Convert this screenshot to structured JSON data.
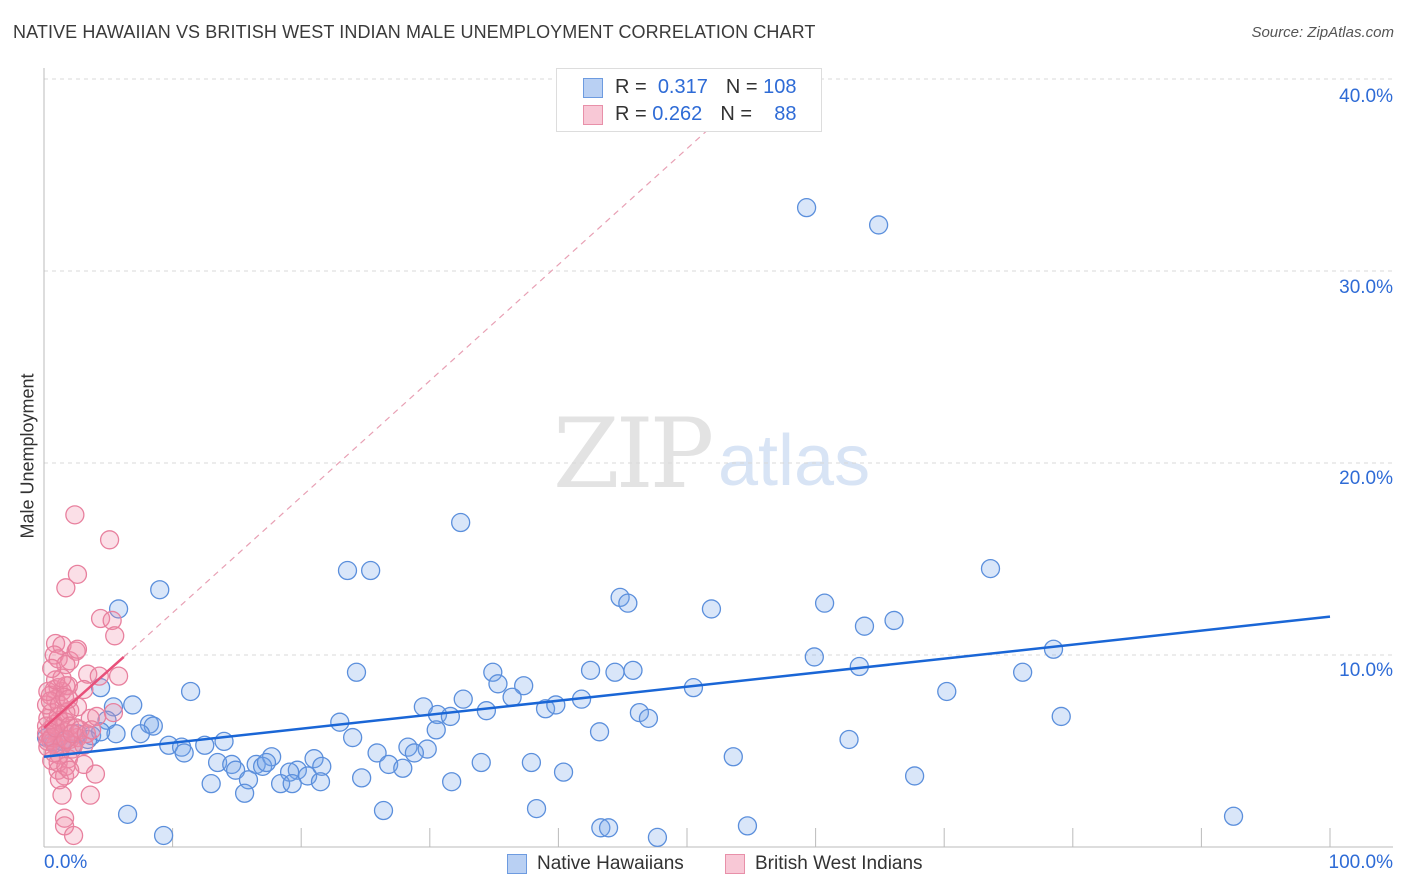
{
  "chart_data": {
    "type": "scatter",
    "title": "NATIVE HAWAIIAN VS BRITISH WEST INDIAN MALE UNEMPLOYMENT CORRELATION CHART",
    "source": "Source: ZipAtlas.com",
    "xlabel": "",
    "ylabel": "Male Unemployment",
    "xlim": [
      0,
      100
    ],
    "ylim": [
      0,
      40
    ],
    "x_tick_labels": [
      "0.0%",
      "100.0%"
    ],
    "y_ticks": [
      10,
      20,
      30,
      40
    ],
    "y_tick_labels": [
      "10.0%",
      "20.0%",
      "30.0%",
      "40.0%"
    ],
    "grid": true,
    "legend_placement": "top-center",
    "watermark": {
      "zip": "ZIP",
      "atlas": "atlas"
    },
    "series": [
      {
        "name": "Native Hawaiians",
        "color": "#5b8fdc",
        "r_label": "R =",
        "r": "0.317",
        "n_label": "N =",
        "n": "108",
        "trend": {
          "x": [
            0,
            100
          ],
          "y": [
            4.7,
            12.0
          ],
          "style": "solid",
          "color": "#1a66d6"
        },
        "points": [
          [
            59.3,
            33.3
          ],
          [
            64.9,
            32.4
          ],
          [
            32.4,
            16.9
          ],
          [
            23.6,
            14.4
          ],
          [
            25.4,
            14.4
          ],
          [
            73.6,
            14.5
          ],
          [
            44.8,
            13.0
          ],
          [
            45.4,
            12.7
          ],
          [
            51.9,
            12.4
          ],
          [
            60.7,
            12.7
          ],
          [
            66.1,
            11.8
          ],
          [
            63.8,
            11.5
          ],
          [
            9.0,
            13.4
          ],
          [
            5.8,
            12.4
          ],
          [
            78.5,
            10.3
          ],
          [
            59.9,
            9.9
          ],
          [
            63.4,
            9.4
          ],
          [
            76.1,
            9.1
          ],
          [
            42.5,
            9.2
          ],
          [
            44.4,
            9.1
          ],
          [
            45.8,
            9.2
          ],
          [
            34.9,
            9.1
          ],
          [
            35.3,
            8.5
          ],
          [
            37.3,
            8.4
          ],
          [
            36.4,
            7.8
          ],
          [
            24.3,
            9.1
          ],
          [
            11.4,
            8.1
          ],
          [
            4.4,
            8.3
          ],
          [
            50.5,
            8.3
          ],
          [
            70.2,
            8.1
          ],
          [
            6.9,
            7.4
          ],
          [
            5.4,
            7.3
          ],
          [
            4.9,
            6.6
          ],
          [
            29.5,
            7.3
          ],
          [
            32.6,
            7.7
          ],
          [
            30.6,
            6.9
          ],
          [
            31.6,
            6.8
          ],
          [
            34.4,
            7.1
          ],
          [
            39.0,
            7.2
          ],
          [
            39.8,
            7.4
          ],
          [
            41.8,
            7.7
          ],
          [
            46.3,
            7.0
          ],
          [
            47.0,
            6.7
          ],
          [
            79.1,
            6.8
          ],
          [
            23.0,
            6.5
          ],
          [
            30.5,
            6.1
          ],
          [
            8.2,
            6.4
          ],
          [
            8.5,
            6.3
          ],
          [
            7.5,
            5.9
          ],
          [
            3.7,
            5.8
          ],
          [
            2.6,
            5.9
          ],
          [
            0.7,
            5.5
          ],
          [
            0.8,
            5.4
          ],
          [
            43.2,
            6.0
          ],
          [
            62.6,
            5.6
          ],
          [
            14.0,
            5.5
          ],
          [
            9.7,
            5.3
          ],
          [
            10.7,
            5.2
          ],
          [
            10.9,
            4.9
          ],
          [
            12.5,
            5.3
          ],
          [
            24.0,
            5.7
          ],
          [
            25.9,
            4.9
          ],
          [
            28.3,
            5.2
          ],
          [
            29.8,
            5.1
          ],
          [
            28.8,
            4.9
          ],
          [
            53.6,
            4.7
          ],
          [
            13.5,
            4.4
          ],
          [
            14.6,
            4.3
          ],
          [
            16.5,
            4.3
          ],
          [
            17.7,
            4.7
          ],
          [
            17.0,
            4.2
          ],
          [
            17.3,
            4.4
          ],
          [
            21.0,
            4.6
          ],
          [
            19.7,
            4.0
          ],
          [
            20.5,
            3.7
          ],
          [
            21.6,
            4.2
          ],
          [
            19.1,
            3.9
          ],
          [
            14.9,
            4.0
          ],
          [
            26.8,
            4.3
          ],
          [
            27.9,
            4.1
          ],
          [
            34.0,
            4.4
          ],
          [
            37.9,
            4.4
          ],
          [
            40.4,
            3.9
          ],
          [
            24.7,
            3.6
          ],
          [
            15.9,
            3.5
          ],
          [
            18.4,
            3.3
          ],
          [
            19.3,
            3.3
          ],
          [
            21.5,
            3.4
          ],
          [
            13.0,
            3.3
          ],
          [
            31.7,
            3.4
          ],
          [
            67.7,
            3.7
          ],
          [
            15.6,
            2.8
          ],
          [
            6.5,
            1.7
          ],
          [
            26.4,
            1.9
          ],
          [
            38.3,
            2.0
          ],
          [
            92.5,
            1.6
          ],
          [
            9.3,
            0.6
          ],
          [
            43.3,
            1.0
          ],
          [
            43.9,
            1.0
          ],
          [
            47.7,
            0.5
          ],
          [
            54.7,
            1.1
          ],
          [
            5.6,
            5.9
          ],
          [
            4.4,
            6.0
          ],
          [
            1.4,
            5.5
          ],
          [
            2.2,
            5.3
          ],
          [
            3.4,
            5.6
          ],
          [
            1.2,
            5.7
          ],
          [
            0.2,
            5.7
          ]
        ]
      },
      {
        "name": "British West Indians",
        "color": "#e8809e",
        "r_label": "R =",
        "r": "0.262",
        "n_label": "N =",
        "n": "88",
        "trend": {
          "x": [
            0,
            6.2
          ],
          "y": [
            6.2,
            9.9
          ],
          "style": "solid",
          "color": "#e8507a"
        },
        "trend_extension": {
          "x": [
            6.2,
            56
          ],
          "y": [
            9.9,
            40
          ],
          "style": "dashed",
          "color": "#e8a0b4"
        },
        "points": [
          [
            2.4,
            17.3
          ],
          [
            5.1,
            16.0
          ],
          [
            2.6,
            14.2
          ],
          [
            1.7,
            13.5
          ],
          [
            4.4,
            11.9
          ],
          [
            5.3,
            11.8
          ],
          [
            5.5,
            11.0
          ],
          [
            0.9,
            10.6
          ],
          [
            1.4,
            10.5
          ],
          [
            0.8,
            10.0
          ],
          [
            1.1,
            9.8
          ],
          [
            2.0,
            9.7
          ],
          [
            2.5,
            10.2
          ],
          [
            2.6,
            10.3
          ],
          [
            1.7,
            9.5
          ],
          [
            0.8,
            8.2
          ],
          [
            1.1,
            8.3
          ],
          [
            1.4,
            8.1
          ],
          [
            1.7,
            8.4
          ],
          [
            1.9,
            8.4
          ],
          [
            0.9,
            7.7
          ],
          [
            0.5,
            7.9
          ],
          [
            2.0,
            7.1
          ],
          [
            2.6,
            7.3
          ],
          [
            3.4,
            9.0
          ],
          [
            4.3,
            8.9
          ],
          [
            5.8,
            8.9
          ],
          [
            3.1,
            8.2
          ],
          [
            1.2,
            6.6
          ],
          [
            1.7,
            6.5
          ],
          [
            0.8,
            6.4
          ],
          [
            0.5,
            6.1
          ],
          [
            1.1,
            5.8
          ],
          [
            1.6,
            6.0
          ],
          [
            0.5,
            5.6
          ],
          [
            0.9,
            5.3
          ],
          [
            2.0,
            5.6
          ],
          [
            2.6,
            5.7
          ],
          [
            3.6,
            6.7
          ],
          [
            4.1,
            6.8
          ],
          [
            5.4,
            7.0
          ],
          [
            2.2,
            5.1
          ],
          [
            1.2,
            4.8
          ],
          [
            1.9,
            4.6
          ],
          [
            2.3,
            5.3
          ],
          [
            0.6,
            4.5
          ],
          [
            0.3,
            5.2
          ],
          [
            3.1,
            4.3
          ],
          [
            1.1,
            4.0
          ],
          [
            1.6,
            3.7
          ],
          [
            1.2,
            3.5
          ],
          [
            4.0,
            3.8
          ],
          [
            1.4,
            2.7
          ],
          [
            3.6,
            2.7
          ],
          [
            1.6,
            1.5
          ],
          [
            1.6,
            1.1
          ],
          [
            2.3,
            0.6
          ],
          [
            0.3,
            6.7
          ],
          [
            0.6,
            7.0
          ],
          [
            0.2,
            7.4
          ],
          [
            0.5,
            7.6
          ],
          [
            0.3,
            8.1
          ],
          [
            0.9,
            8.7
          ],
          [
            1.4,
            8.8
          ],
          [
            0.2,
            6.3
          ],
          [
            0.2,
            5.9
          ],
          [
            0.3,
            5.5
          ],
          [
            0.6,
            5.7
          ],
          [
            0.9,
            6.2
          ],
          [
            1.1,
            6.8
          ],
          [
            1.7,
            7.0
          ],
          [
            2.0,
            6.3
          ],
          [
            2.5,
            6.2
          ],
          [
            2.8,
            6.1
          ],
          [
            1.4,
            5.3
          ],
          [
            1.7,
            5.6
          ],
          [
            2.2,
            5.9
          ],
          [
            0.8,
            4.9
          ],
          [
            1.1,
            4.4
          ],
          [
            1.7,
            4.2
          ],
          [
            2.0,
            4.0
          ],
          [
            3.1,
            5.3
          ],
          [
            3.3,
            5.9
          ],
          [
            3.7,
            6.1
          ],
          [
            1.2,
            7.4
          ],
          [
            1.6,
            7.8
          ],
          [
            1.9,
            7.7
          ],
          [
            0.6,
            9.3
          ]
        ]
      }
    ]
  }
}
